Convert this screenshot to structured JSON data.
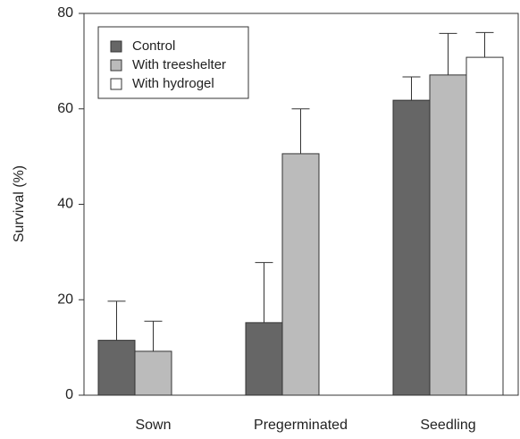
{
  "chart_data": {
    "type": "bar",
    "categories": [
      "Sown",
      "Pregerminated",
      "Seedling"
    ],
    "y_label": "Survival (%)",
    "series": [
      {
        "name": "Control",
        "color": "#666666",
        "values": [
          11.5,
          15.2,
          61.8
        ],
        "errors": [
          8.2,
          12.6,
          4.9
        ]
      },
      {
        "name": "With treeshelter",
        "color": "#bbbbbb",
        "values": [
          9.2,
          50.6,
          67.1
        ],
        "errors": [
          6.3,
          9.4,
          8.7
        ]
      },
      {
        "name": "With hydrogel",
        "color": "#ffffff",
        "values": [
          null,
          null,
          70.8
        ],
        "errors": [
          null,
          null,
          5.2
        ]
      }
    ],
    "ylim": [
      0,
      80
    ],
    "yticks": [
      0,
      20,
      40,
      60,
      80
    ],
    "legend": "upper left"
  }
}
